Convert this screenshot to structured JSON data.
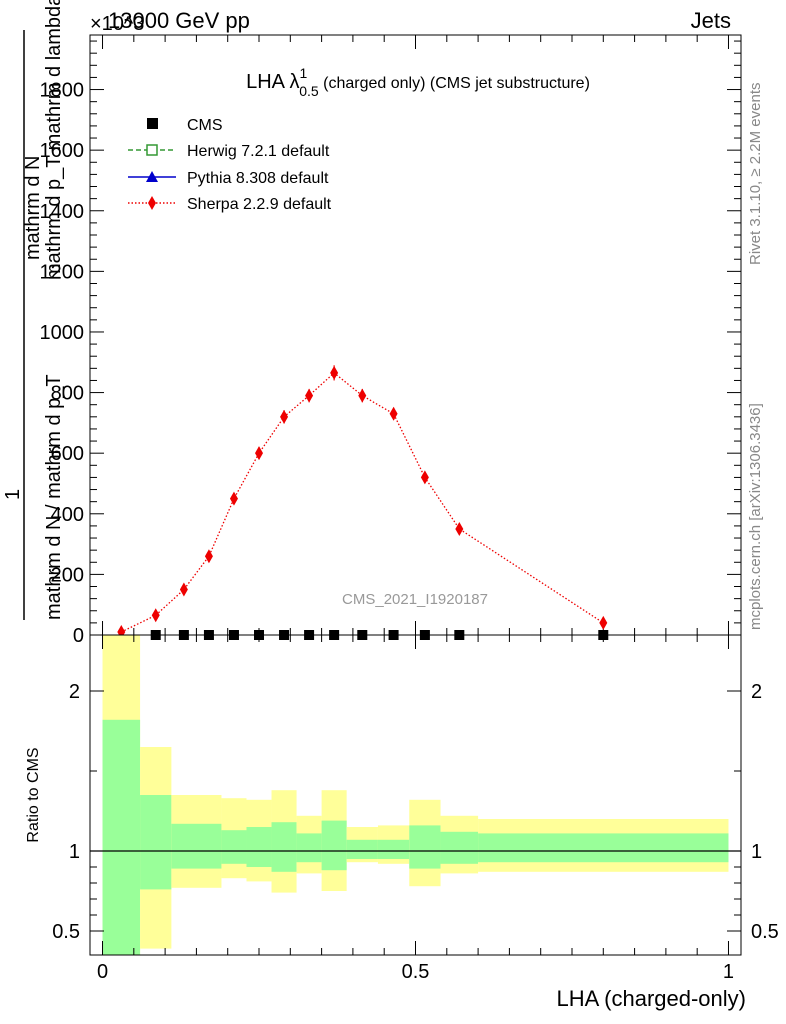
{
  "header": {
    "left_label": "13000 GeV pp",
    "right_label": "Jets",
    "exponent_label": "×10^3"
  },
  "side_labels": {
    "rivet": "Rivet 3.1.10, ≥ 2.2M events",
    "mcplots": "mcplots.cern.ch [arXiv:1306.3436]"
  },
  "watermark": "CMS_2021_I1920187",
  "colors": {
    "sherpa": "#ee0000",
    "herwig": "#339933",
    "pythia": "#0000cc",
    "cms": "#000000",
    "band_inner": "#99ff99",
    "band_outer": "#ffff99"
  },
  "chart_data": [
    {
      "type": "scatter",
      "title_main": "LHA λ",
      "title_sup": "1",
      "title_sub": "0.5",
      "title_rest": " (charged only) (CMS jet substructure)",
      "xlabel": "LHA (charged-only)",
      "ylabel": "1 / mathrm d N / mathrm d p_T mathrm d N / mathrm d p_T mathrm d lambda",
      "ylabel_top": "mathrm d N",
      "ylabel_top_line2": "mathrm d p_T mathrm d lambda",
      "ylabel_bottom": "1",
      "ylabel_bottom_line2": "mathrm d N / mathrm d p_T",
      "xlim": [
        -0.02,
        1.02
      ],
      "ylim": [
        0,
        1980
      ],
      "y_ticks": [
        0,
        200,
        400,
        600,
        800,
        1000,
        1200,
        1400,
        1600,
        1800
      ],
      "y_tick_labels": [
        "0",
        "200",
        "400",
        "600",
        "800",
        "1000",
        "1200",
        "1400",
        "1600",
        "1800"
      ],
      "legend": [
        {
          "name": "CMS",
          "style": "marker-square"
        },
        {
          "name": "Herwig 7.2.1 default",
          "style": "dashed-open-square"
        },
        {
          "name": "Pythia 8.308 default",
          "style": "solid-triangle"
        },
        {
          "name": "Sherpa 2.2.9 default",
          "style": "dotted-diamond"
        }
      ],
      "series": [
        {
          "name": "Sherpa 2.2.9 default",
          "x": [
            0.03,
            0.085,
            0.13,
            0.17,
            0.21,
            0.25,
            0.29,
            0.33,
            0.37,
            0.415,
            0.465,
            0.515,
            0.57,
            0.8
          ],
          "values": [
            10,
            65,
            150,
            260,
            450,
            600,
            720,
            790,
            865,
            790,
            730,
            520,
            350,
            40
          ],
          "errors": [
            5,
            10,
            12,
            15,
            18,
            20,
            22,
            22,
            25,
            22,
            20,
            18,
            15,
            8
          ]
        },
        {
          "name": "CMS",
          "x": [
            0.085,
            0.13,
            0.17,
            0.21,
            0.25,
            0.29,
            0.33,
            0.37,
            0.415,
            0.465,
            0.515,
            0.57,
            0.8
          ],
          "values": [
            0,
            0,
            0,
            0,
            0,
            0,
            0,
            0,
            0,
            0,
            0,
            0,
            0
          ]
        }
      ]
    },
    {
      "type": "area",
      "ylabel": "Ratio to CMS",
      "xlabel": "LHA (charged-only)",
      "xlim": [
        -0.02,
        1.02
      ],
      "ylim": [
        0.35,
        2.35
      ],
      "x_ticks": [
        0,
        0.5,
        1
      ],
      "x_tick_labels": [
        "0",
        "0.5",
        "1"
      ],
      "y_tick_labels": [
        "0.5",
        "1",
        "2"
      ],
      "y_tick_values": [
        0.5,
        1,
        2
      ],
      "reference_line": 1,
      "bins": [
        {
          "lo": 0.0,
          "hi": 0.06,
          "inner_lo": 0.35,
          "inner_hi": 1.82,
          "outer_lo": 0.35,
          "outer_hi": 2.35
        },
        {
          "lo": 0.06,
          "hi": 0.11,
          "inner_lo": 0.76,
          "inner_hi": 1.35,
          "outer_lo": 0.39,
          "outer_hi": 1.65
        },
        {
          "lo": 0.11,
          "hi": 0.19,
          "inner_lo": 0.89,
          "inner_hi": 1.17,
          "outer_lo": 0.77,
          "outer_hi": 1.35
        },
        {
          "lo": 0.19,
          "hi": 0.23,
          "inner_lo": 0.92,
          "inner_hi": 1.13,
          "outer_lo": 0.83,
          "outer_hi": 1.33
        },
        {
          "lo": 0.23,
          "hi": 0.27,
          "inner_lo": 0.9,
          "inner_hi": 1.15,
          "outer_lo": 0.81,
          "outer_hi": 1.32
        },
        {
          "lo": 0.27,
          "hi": 0.31,
          "inner_lo": 0.87,
          "inner_hi": 1.18,
          "outer_lo": 0.74,
          "outer_hi": 1.38
        },
        {
          "lo": 0.31,
          "hi": 0.35,
          "inner_lo": 0.93,
          "inner_hi": 1.11,
          "outer_lo": 0.86,
          "outer_hi": 1.22
        },
        {
          "lo": 0.35,
          "hi": 0.39,
          "inner_lo": 0.88,
          "inner_hi": 1.19,
          "outer_lo": 0.75,
          "outer_hi": 1.38
        },
        {
          "lo": 0.39,
          "hi": 0.44,
          "inner_lo": 0.95,
          "inner_hi": 1.07,
          "outer_lo": 0.93,
          "outer_hi": 1.15
        },
        {
          "lo": 0.44,
          "hi": 0.49,
          "inner_lo": 0.95,
          "inner_hi": 1.07,
          "outer_lo": 0.92,
          "outer_hi": 1.16
        },
        {
          "lo": 0.49,
          "hi": 0.54,
          "inner_lo": 0.89,
          "inner_hi": 1.16,
          "outer_lo": 0.78,
          "outer_hi": 1.32
        },
        {
          "lo": 0.54,
          "hi": 0.6,
          "inner_lo": 0.92,
          "inner_hi": 1.12,
          "outer_lo": 0.86,
          "outer_hi": 1.22
        },
        {
          "lo": 0.6,
          "hi": 1.0,
          "inner_lo": 0.93,
          "inner_hi": 1.11,
          "outer_lo": 0.87,
          "outer_hi": 1.2
        }
      ]
    }
  ]
}
